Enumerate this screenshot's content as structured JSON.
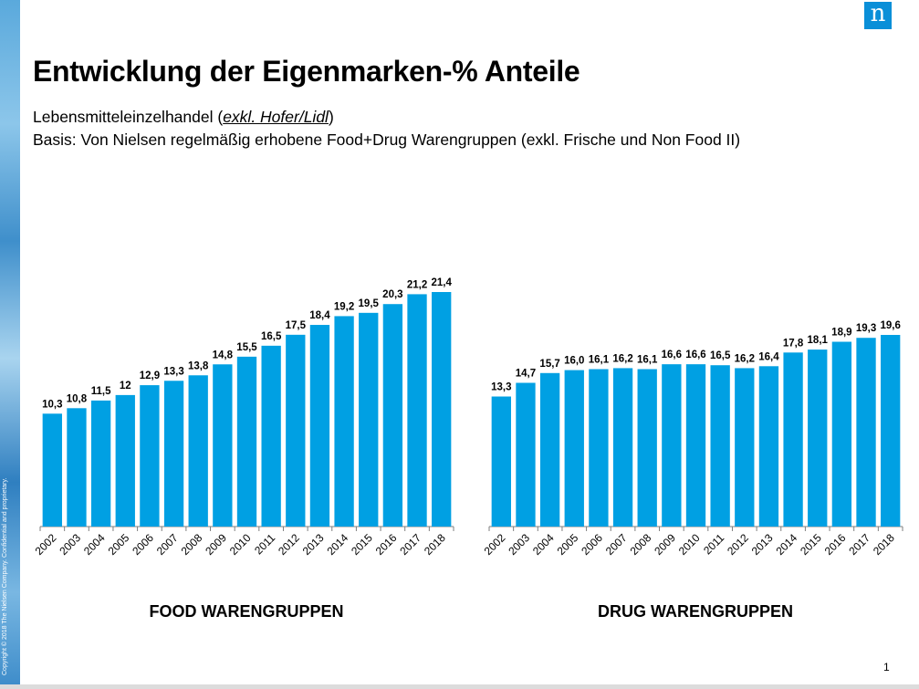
{
  "title": "Entwicklung der Eigenmarken-% Anteile",
  "subtitle": {
    "line1_prefix": "Lebensmitteleinzelhandel  (",
    "line1_emph": "exkl. Hofer/Lidl",
    "line1_suffix": ")",
    "line2": "Basis: Von Nielsen  regelmäßig erhobene Food+Drug Warengruppen (exkl. Frische und Non Food II)"
  },
  "logo": {
    "glyph": "n"
  },
  "copyright": "Copyright © 2018 The Nielsen Company. Confidential and proprietary.",
  "page_number": "1",
  "colors": {
    "bar": "#00a0e3",
    "axis": "#7f7f7f",
    "logo_bg": "#0a8fd8"
  },
  "chart_data": [
    {
      "type": "bar",
      "title": "FOOD WARENGRUPPEN",
      "categories": [
        "2002",
        "2003",
        "2004",
        "2005",
        "2006",
        "2007",
        "2008",
        "2009",
        "2010",
        "2011",
        "2012",
        "2013",
        "2014",
        "2015",
        "2016",
        "2017",
        "2018"
      ],
      "values": [
        10.3,
        10.8,
        11.5,
        12,
        12.9,
        13.3,
        13.8,
        14.8,
        15.5,
        16.5,
        17.5,
        18.4,
        19.2,
        19.5,
        20.3,
        21.2,
        21.4
      ],
      "value_labels": [
        "10,3",
        "10,8",
        "11,5",
        "12",
        "12,9",
        "13,3",
        "13,8",
        "14,8",
        "15,5",
        "16,5",
        "17,5",
        "18,4",
        "19,2",
        "19,5",
        "20,3",
        "21,2",
        "21,4"
      ],
      "xlabel": "",
      "ylabel": "",
      "ylim": [
        0,
        21.4
      ],
      "grid": false
    },
    {
      "type": "bar",
      "title": "DRUG WARENGRUPPEN",
      "categories": [
        "2002",
        "2003",
        "2004",
        "2005",
        "2006",
        "2007",
        "2008",
        "2009",
        "2010",
        "2011",
        "2012",
        "2013",
        "2014",
        "2015",
        "2016",
        "2017",
        "2018"
      ],
      "values": [
        13.3,
        14.7,
        15.7,
        16.0,
        16.1,
        16.2,
        16.1,
        16.6,
        16.6,
        16.5,
        16.2,
        16.4,
        17.8,
        18.1,
        18.9,
        19.3,
        19.6
      ],
      "value_labels": [
        "13,3",
        "14,7",
        "15,7",
        "16,0",
        "16,1",
        "16,2",
        "16,1",
        "16,6",
        "16,6",
        "16,5",
        "16,2",
        "16,4",
        "17,8",
        "18,1",
        "18,9",
        "19,3",
        "19,6"
      ],
      "xlabel": "",
      "ylabel": "",
      "ylim": [
        0,
        19.6
      ],
      "grid": false
    }
  ]
}
